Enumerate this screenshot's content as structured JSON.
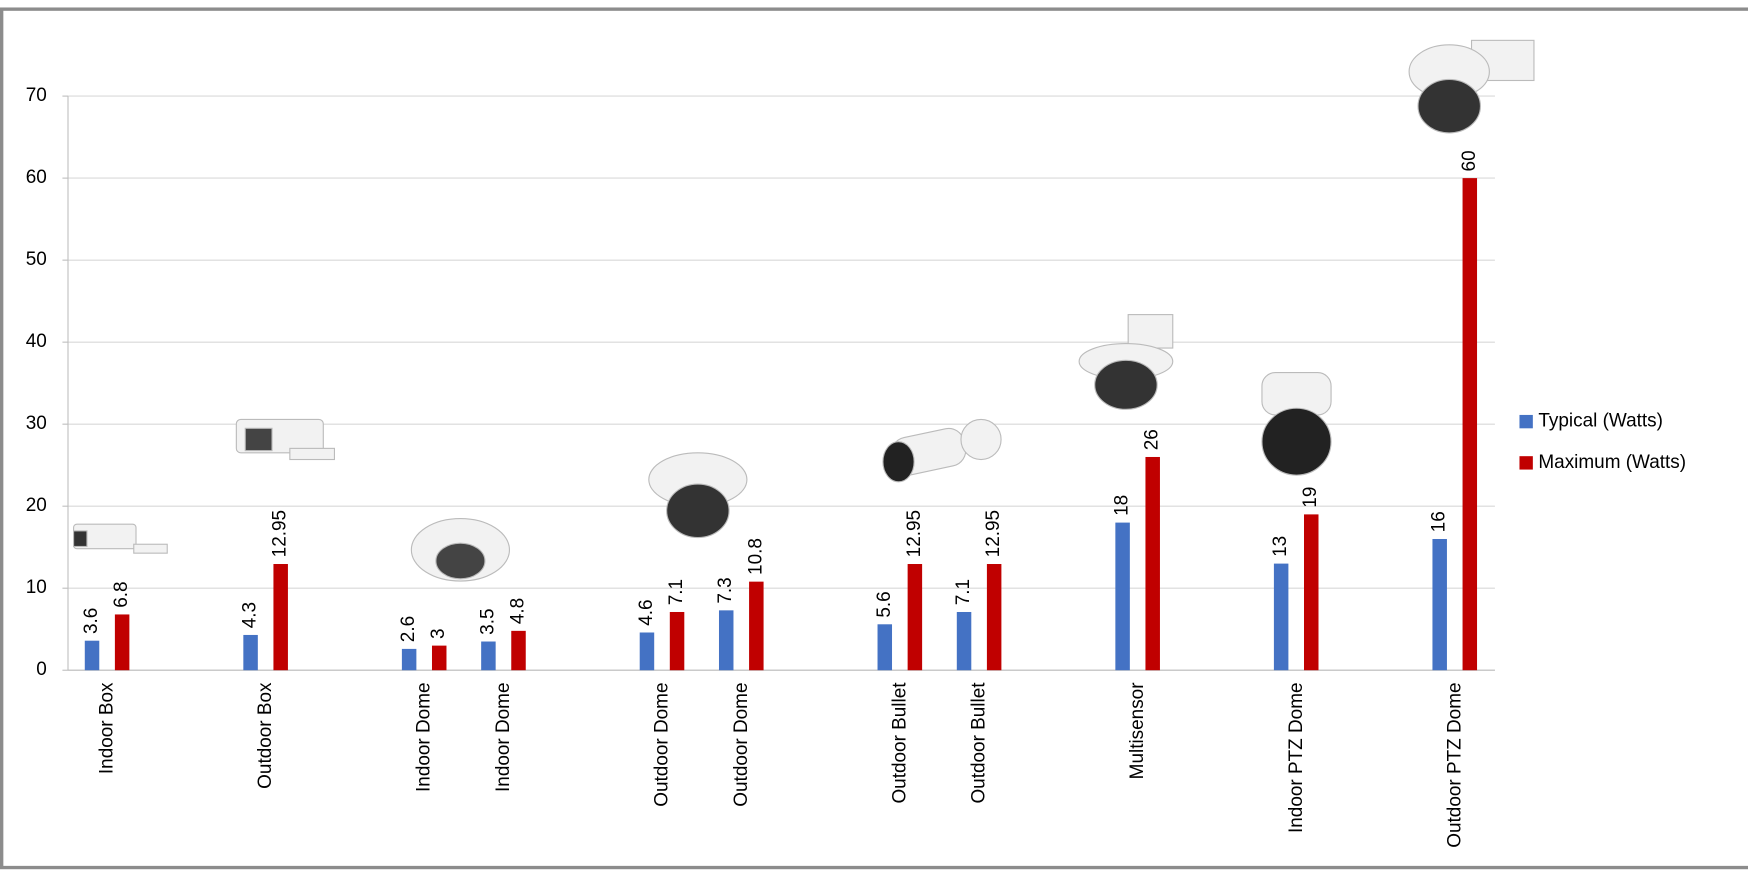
{
  "chart_data": {
    "type": "bar",
    "categories": [
      "Indoor Box",
      null,
      "Outdoor Box",
      null,
      "Indoor Dome",
      "Indoor Dome",
      null,
      "Outdoor Dome",
      "Outdoor Dome",
      null,
      "Outdoor Bullet",
      "Outdoor Bullet",
      null,
      "Multisensor",
      null,
      "Indoor PTZ Dome",
      null,
      "Outdoor PTZ Dome"
    ],
    "series": [
      {
        "name": "Typical (Watts)",
        "color": "#4472c4",
        "values": [
          3.6,
          null,
          4.3,
          null,
          2.6,
          3.5,
          null,
          4.6,
          7.3,
          null,
          5.6,
          7.1,
          null,
          18,
          null,
          13,
          null,
          16
        ]
      },
      {
        "name": "Maximum (Watts)",
        "color": "#c00000",
        "values": [
          6.8,
          null,
          12.95,
          null,
          3,
          4.8,
          null,
          7.1,
          10.8,
          null,
          12.95,
          12.95,
          null,
          26,
          null,
          19,
          null,
          60
        ]
      }
    ],
    "ylim": [
      0,
      70
    ],
    "yticks": [
      0,
      10,
      20,
      30,
      40,
      50,
      60,
      70
    ],
    "grid": true,
    "legend": "right"
  }
}
